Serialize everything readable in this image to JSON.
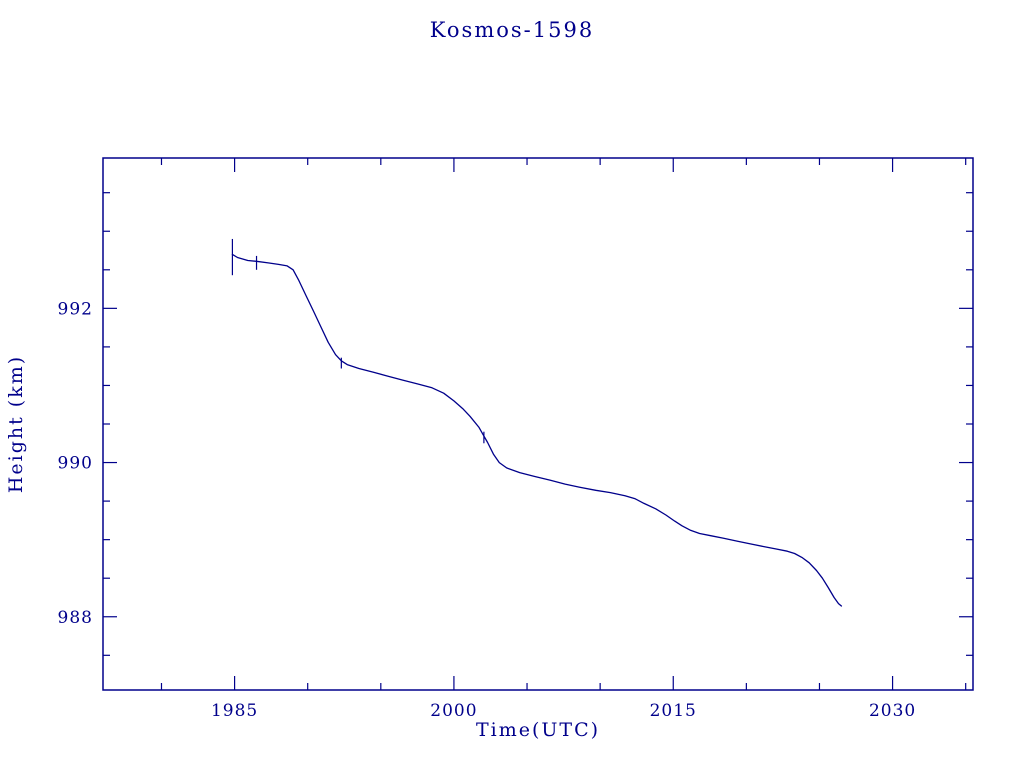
{
  "chart_data": {
    "type": "line",
    "title": "Kosmos-1598",
    "xlabel": "Time(UTC)",
    "ylabel": "Height (km)",
    "color": "#00008B",
    "background": "#ffffff",
    "grid": false,
    "legend": false,
    "xlim": [
      1976,
      2035.5
    ],
    "ylim": [
      987.05,
      993.95
    ],
    "x_major_ticks": [
      1985,
      2000,
      2015,
      2030
    ],
    "x_minor_step": 5,
    "y_major_ticks": [
      988,
      990,
      992
    ],
    "y_minor_step": 0.5,
    "series": [
      {
        "name": "Kosmos-1598 height",
        "points": [
          [
            1984.85,
            992.7
          ],
          [
            1985.2,
            992.66
          ],
          [
            1985.9,
            992.62
          ],
          [
            1986.5,
            992.61
          ],
          [
            1987.3,
            992.59
          ],
          [
            1988.0,
            992.57
          ],
          [
            1988.6,
            992.55
          ],
          [
            1989.0,
            992.5
          ],
          [
            1989.4,
            992.36
          ],
          [
            1989.9,
            992.16
          ],
          [
            1990.4,
            991.96
          ],
          [
            1990.9,
            991.76
          ],
          [
            1991.4,
            991.56
          ],
          [
            1991.9,
            991.4
          ],
          [
            1992.3,
            991.32
          ],
          [
            1992.7,
            991.27
          ],
          [
            1993.5,
            991.22
          ],
          [
            1994.5,
            991.17
          ],
          [
            1995.5,
            991.12
          ],
          [
            1996.5,
            991.07
          ],
          [
            1997.5,
            991.02
          ],
          [
            1998.5,
            990.97
          ],
          [
            1999.3,
            990.9
          ],
          [
            2000.0,
            990.8
          ],
          [
            2000.6,
            990.7
          ],
          [
            2001.1,
            990.6
          ],
          [
            2001.7,
            990.46
          ],
          [
            2002.0,
            990.36
          ],
          [
            2002.3,
            990.26
          ],
          [
            2002.7,
            990.11
          ],
          [
            2003.1,
            990.0
          ],
          [
            2003.6,
            989.93
          ],
          [
            2004.5,
            989.87
          ],
          [
            2005.5,
            989.82
          ],
          [
            2006.6,
            989.77
          ],
          [
            2007.6,
            989.72
          ],
          [
            2008.6,
            989.68
          ],
          [
            2009.7,
            989.64
          ],
          [
            2010.7,
            989.61
          ],
          [
            2011.7,
            989.57
          ],
          [
            2012.4,
            989.53
          ],
          [
            2013.0,
            989.47
          ],
          [
            2013.8,
            989.4
          ],
          [
            2014.5,
            989.32
          ],
          [
            2015.1,
            989.24
          ],
          [
            2015.6,
            989.18
          ],
          [
            2016.2,
            989.12
          ],
          [
            2016.8,
            989.08
          ],
          [
            2017.6,
            989.05
          ],
          [
            2018.4,
            989.02
          ],
          [
            2019.4,
            988.98
          ],
          [
            2020.4,
            988.94
          ],
          [
            2021.2,
            988.91
          ],
          [
            2022.0,
            988.88
          ],
          [
            2022.8,
            988.85
          ],
          [
            2023.3,
            988.82
          ],
          [
            2023.8,
            988.77
          ],
          [
            2024.3,
            988.7
          ],
          [
            2024.8,
            988.6
          ],
          [
            2025.2,
            988.5
          ],
          [
            2025.6,
            988.38
          ],
          [
            2026.0,
            988.25
          ],
          [
            2026.3,
            988.17
          ],
          [
            2026.5,
            988.14
          ]
        ]
      }
    ],
    "error_bars": [
      {
        "x": 1984.85,
        "y0": 992.43,
        "y1": 992.9
      },
      {
        "x": 1986.5,
        "y0": 992.5,
        "y1": 992.68
      },
      {
        "x": 1992.3,
        "y0": 991.22,
        "y1": 991.36
      },
      {
        "x": 2002.05,
        "y0": 990.25,
        "y1": 990.4
      }
    ]
  }
}
